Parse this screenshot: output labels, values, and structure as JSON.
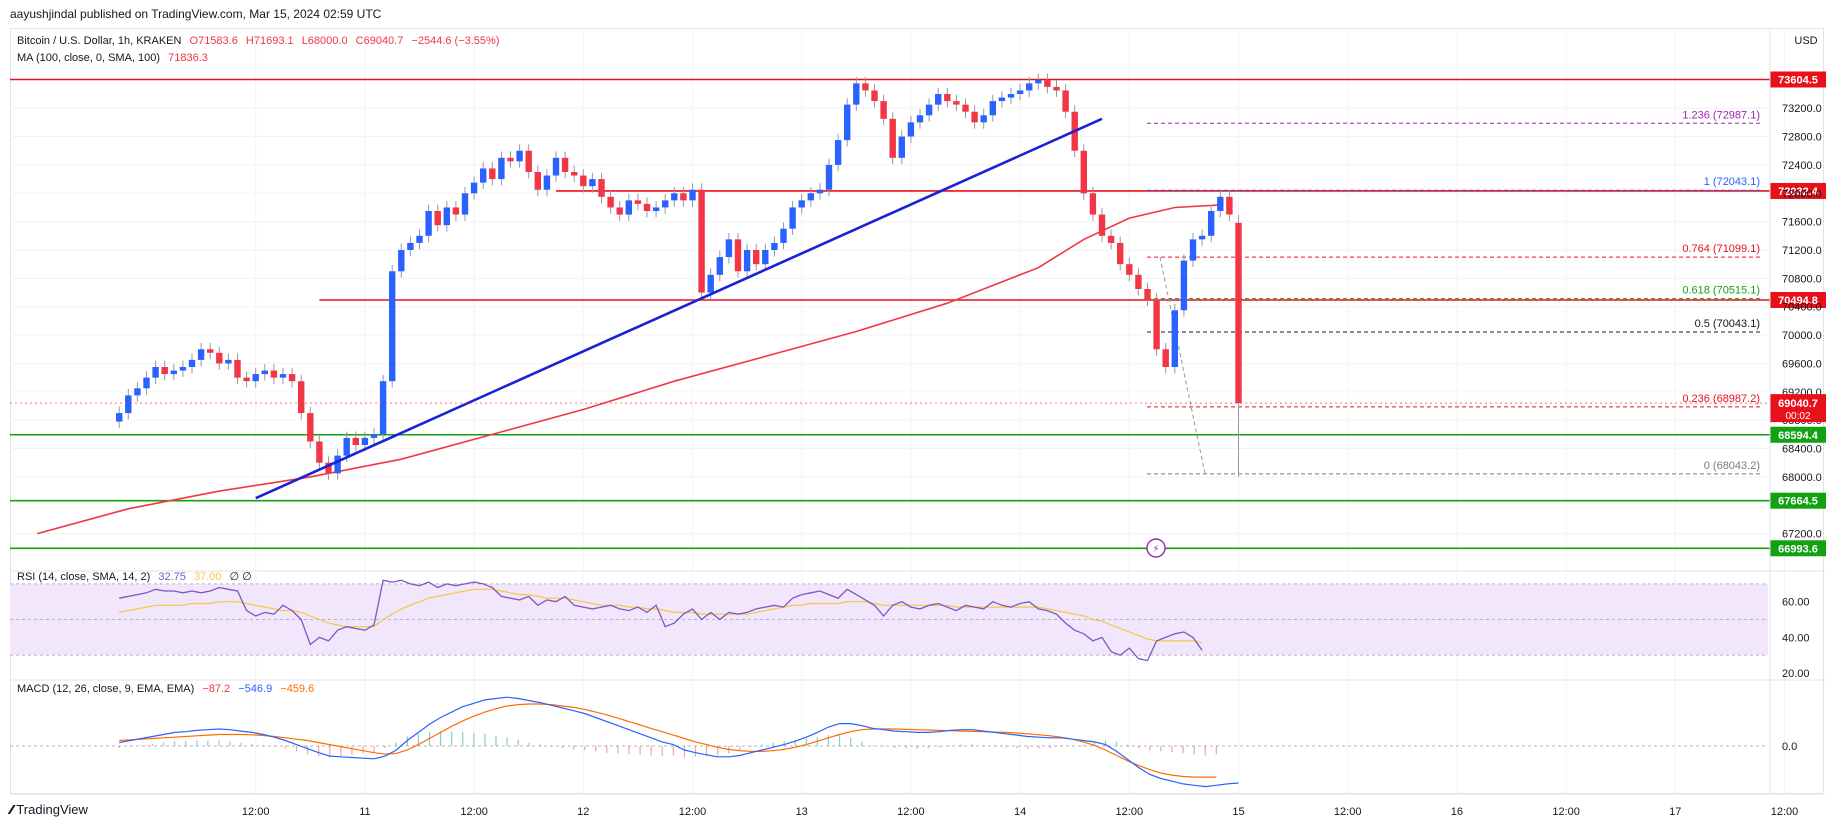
{
  "header": {
    "published": "aayushjindal published on TradingView.com, Mar 15, 2024 02:59 UTC"
  },
  "symbol_legend": {
    "name": "Bitcoin / U.S. Dollar, 1h, KRAKEN",
    "open": "O71583.6",
    "high": "H71693.1",
    "low": "L68000.0",
    "close": "C69040.7",
    "change": "−2544.6 (−3.55%)"
  },
  "ma_legend": {
    "name": "MA (100, close, 0, SMA, 100)",
    "value": "71836.3"
  },
  "rsi_legend": {
    "name": "RSI (14, close, SMA, 14, 2)",
    "value": "32.75",
    "value2": "37.00",
    "extra": "∅ ∅"
  },
  "macd_legend": {
    "name": "MACD (12, 26, close, 9, EMA, EMA)",
    "hist": "−87.2",
    "macd": "−546.9",
    "signal": "−459.6"
  },
  "colors": {
    "up": "#2962ff",
    "down": "#f23645",
    "ma": "#f23645",
    "trend": "#1a22d6",
    "resistance": "#e8111b",
    "support": "#11a111",
    "fib": "#9c27b0",
    "rsi_band": "#f1e6fb"
  },
  "footer": {
    "brand": "TradingView"
  },
  "chart_data": {
    "type": "candlestick",
    "title": "Bitcoin / U.S. Dollar, 1h, KRAKEN",
    "currency": "USD",
    "ylim": [
      66800,
      73950
    ],
    "y_ticks": [
      67200,
      68000,
      68400,
      68800,
      69200,
      69600,
      70000,
      70400,
      70800,
      71200,
      71600,
      72000,
      72400,
      72800,
      73200
    ],
    "x_ticks": [
      {
        "label": "12:00",
        "hour": 24
      },
      {
        "label": "11",
        "hour": 36
      },
      {
        "label": "12:00",
        "hour": 48
      },
      {
        "label": "12",
        "hour": 60
      },
      {
        "label": "12:00",
        "hour": 72
      },
      {
        "label": "13",
        "hour": 84
      },
      {
        "label": "12:00",
        "hour": 96
      },
      {
        "label": "14",
        "hour": 108
      },
      {
        "label": "12:00",
        "hour": 120
      },
      {
        "label": "15",
        "hour": 132
      },
      {
        "label": "12:00",
        "hour": 144
      },
      {
        "label": "16",
        "hour": 156
      },
      {
        "label": "12:00",
        "hour": 168
      },
      {
        "label": "17",
        "hour": 180
      },
      {
        "label": "12:00",
        "hour": 192
      }
    ],
    "closes": [
      68900,
      69150,
      69250,
      69400,
      69550,
      69450,
      69500,
      69550,
      69650,
      69800,
      69750,
      69600,
      69650,
      69400,
      69350,
      69450,
      69500,
      69400,
      69450,
      69350,
      68900,
      68500,
      68200,
      68050,
      68300,
      68550,
      68450,
      68550,
      68600,
      69350,
      70900,
      71200,
      71300,
      71400,
      71750,
      71550,
      71800,
      71700,
      72000,
      72150,
      72350,
      72200,
      72500,
      72450,
      72600,
      72300,
      72050,
      72250,
      72500,
      72300,
      72250,
      72100,
      72200,
      71950,
      71800,
      71700,
      71900,
      71850,
      71750,
      71800,
      71900,
      72000,
      71900,
      72050,
      70600,
      70850,
      71100,
      71350,
      70900,
      71200,
      71000,
      71200,
      71300,
      71500,
      71800,
      71900,
      72000,
      72050,
      72400,
      72750,
      73250,
      73550,
      73450,
      73300,
      73050,
      72500,
      72800,
      73000,
      73100,
      73250,
      73400,
      73300,
      73250,
      73150,
      73000,
      73100,
      73300,
      73350,
      73400,
      73450,
      73550,
      73600,
      73500,
      73450,
      73150,
      72600,
      72000,
      71700,
      71400,
      71300,
      71000,
      70850,
      70650,
      70500,
      69800,
      69550,
      70350,
      71050,
      71350,
      71400,
      71750,
      71950,
      71700,
      69040.7
    ],
    "annotated_candles": [
      {
        "hour": 116,
        "note": "wick high ~73700"
      },
      {
        "hour": 132,
        "open": 71583.6,
        "high": 71693.1,
        "low": 68000.0,
        "close": 69040.7
      }
    ],
    "ma100_points": [
      [
        0,
        67200
      ],
      [
        10,
        67550
      ],
      [
        20,
        67800
      ],
      [
        30,
        68000
      ],
      [
        40,
        68250
      ],
      [
        50,
        68600
      ],
      [
        60,
        68950
      ],
      [
        70,
        69350
      ],
      [
        80,
        69700
      ],
      [
        90,
        70050
      ],
      [
        100,
        70450
      ],
      [
        110,
        70950
      ],
      [
        115,
        71350
      ],
      [
        120,
        71650
      ],
      [
        125,
        71800
      ],
      [
        130,
        71836
      ]
    ],
    "horizontal_levels": [
      {
        "price": 73604.5,
        "label": "73604.5",
        "kind": "resistance"
      },
      {
        "price": 72032.4,
        "label": "72032.4",
        "kind": "resistance"
      },
      {
        "price": 70494.8,
        "label": "70494.8",
        "kind": "resistance"
      },
      {
        "price": 68594.4,
        "label": "68594.4",
        "kind": "support"
      },
      {
        "price": 67664.5,
        "label": "67664.5",
        "kind": "support"
      },
      {
        "price": 66993.6,
        "label": "66993.6",
        "kind": "support"
      }
    ],
    "trend_line": [
      [
        24,
        67700
      ],
      [
        117,
        73050
      ]
    ],
    "fib_levels": [
      {
        "ratio": "1.236",
        "price": 72987.1,
        "label": "1.236 (72987.1)",
        "color": "#9c27b0"
      },
      {
        "ratio": "1",
        "price": 72043.1,
        "label": "1 (72043.1)",
        "color": "#2962ff"
      },
      {
        "ratio": "0.764",
        "price": 71099.1,
        "label": "0.764 (71099.1)",
        "color": "#e8111b"
      },
      {
        "ratio": "0.618",
        "price": 70515.1,
        "label": "0.618 (70515.1)",
        "color": "#11a111"
      },
      {
        "ratio": "0.5",
        "price": 70043.1,
        "label": "0.5 (70043.1)",
        "color": "#131722"
      },
      {
        "ratio": "0.236",
        "price": 68987.2,
        "label": "0.236 (68987.2)",
        "color": "#e8111b"
      },
      {
        "ratio": "0",
        "price": 68043.2,
        "label": "0 (68043.2)",
        "color": "#787b86"
      }
    ],
    "current_price": {
      "price": 69040.7,
      "label": "69040.7",
      "countdown": "00:02"
    },
    "rsi": {
      "ylim": [
        20,
        75
      ],
      "ticks": [
        20.0,
        40.0,
        60.0
      ],
      "band": [
        30,
        70
      ],
      "rsi_values": [
        62,
        63,
        64,
        65,
        67,
        66,
        66,
        65,
        66,
        65,
        66,
        68,
        67,
        66,
        55,
        52,
        54,
        53,
        58,
        55,
        50,
        36,
        40,
        38,
        44,
        46,
        45,
        44,
        47,
        72,
        71,
        72,
        70,
        69,
        71,
        68,
        70,
        69,
        70,
        71,
        70,
        68,
        63,
        62,
        61,
        63,
        58,
        61,
        60,
        63,
        58,
        57,
        56,
        57,
        58,
        56,
        55,
        57,
        54,
        58,
        46,
        48,
        53,
        56,
        50,
        54,
        50,
        54,
        53,
        54,
        56,
        57,
        58,
        57,
        62,
        64,
        65,
        66,
        64,
        62,
        67,
        64,
        61,
        58,
        52,
        58,
        60,
        57,
        56,
        58,
        59,
        57,
        55,
        58,
        57,
        56,
        60,
        58,
        57,
        59,
        60,
        56,
        55,
        53,
        48,
        44,
        42,
        38,
        40,
        32,
        30,
        34,
        28,
        27,
        38,
        40,
        42,
        43,
        40,
        32.75
      ],
      "rsi_ma_values": [
        54,
        55,
        56,
        57,
        58,
        58,
        58,
        58,
        59,
        59,
        59,
        60,
        60,
        60,
        59,
        58,
        57,
        56,
        55,
        55,
        54,
        52,
        50,
        48,
        47,
        46,
        46,
        46,
        46,
        50,
        53,
        56,
        58,
        60,
        62,
        63,
        64,
        65,
        66,
        67,
        67,
        67,
        66,
        65,
        64,
        64,
        63,
        62,
        62,
        62,
        61,
        60,
        59,
        58,
        58,
        58,
        57,
        57,
        56,
        56,
        55,
        54,
        54,
        54,
        53,
        53,
        53,
        53,
        53,
        53,
        54,
        55,
        56,
        57,
        58,
        58,
        59,
        59,
        59,
        59,
        60,
        60,
        60,
        59,
        58,
        58,
        58,
        58,
        58,
        58,
        58,
        58,
        57,
        57,
        57,
        57,
        57,
        57,
        57,
        57,
        57,
        57,
        56,
        55,
        54,
        53,
        52,
        50,
        49,
        47,
        45,
        43,
        41,
        39,
        38,
        38,
        38,
        38,
        38,
        37.0
      ]
    },
    "macd": {
      "ylim": [
        -650,
        900
      ],
      "ticks": [
        0.0
      ],
      "macd_values": [
        50,
        80,
        110,
        140,
        170,
        200,
        210,
        230,
        240,
        250,
        240,
        220,
        200,
        170,
        130,
        80,
        20,
        -40,
        -100,
        -150,
        -160,
        -170,
        -180,
        -190,
        -150,
        -60,
        80,
        200,
        320,
        420,
        500,
        580,
        630,
        680,
        700,
        720,
        700,
        670,
        640,
        600,
        560,
        520,
        480,
        420,
        360,
        300,
        240,
        180,
        120,
        60,
        20,
        -60,
        -100,
        -130,
        -160,
        -160,
        -140,
        -100,
        -60,
        -20,
        20,
        70,
        130,
        200,
        280,
        330,
        330,
        300,
        260,
        240,
        220,
        210,
        200,
        200,
        210,
        230,
        240,
        240,
        220,
        200,
        180,
        160,
        140,
        130,
        120,
        120,
        100,
        80,
        60,
        20,
        -80,
        -200,
        -320,
        -420,
        -480,
        -520,
        -560,
        -580,
        -600,
        -580,
        -560,
        -546.9
      ],
      "signal_values": [
        80,
        90,
        100,
        110,
        120,
        130,
        140,
        150,
        160,
        170,
        170,
        170,
        165,
        155,
        140,
        120,
        100,
        80,
        50,
        20,
        -10,
        -40,
        -70,
        -100,
        -120,
        -110,
        -60,
        20,
        110,
        200,
        290,
        370,
        440,
        500,
        550,
        590,
        610,
        620,
        620,
        610,
        590,
        570,
        540,
        500,
        460,
        410,
        360,
        310,
        260,
        210,
        160,
        110,
        60,
        20,
        -20,
        -50,
        -70,
        -80,
        -80,
        -70,
        -50,
        -20,
        20,
        70,
        120,
        170,
        210,
        240,
        250,
        250,
        250,
        245,
        240,
        235,
        230,
        225,
        220,
        215,
        210,
        205,
        200,
        190,
        180,
        165,
        150,
        130,
        100,
        60,
        10,
        -60,
        -140,
        -220,
        -290,
        -350,
        -400,
        -430,
        -450,
        -460,
        -460,
        -459.6
      ]
    }
  }
}
